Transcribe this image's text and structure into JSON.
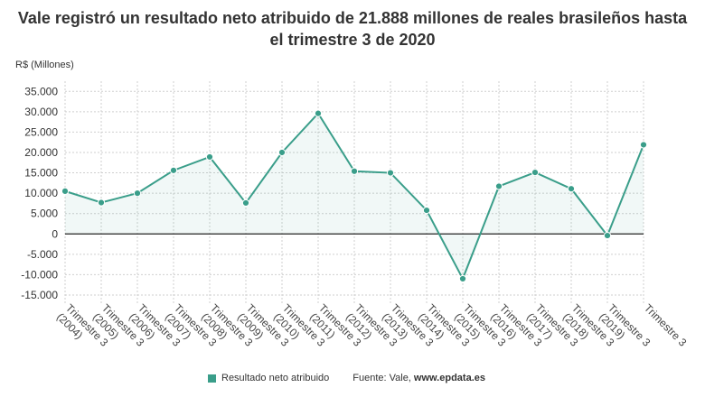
{
  "chart_data": {
    "type": "line",
    "title_line1": "Vale registró un resultado neto atribuido de 21.888 millones de reales brasileños hasta",
    "title_line2": "el trimestre 3 de 2020",
    "ylabel": "R$ (Millones)",
    "ylim": [
      -17000,
      37500
    ],
    "yticks": [
      -15000,
      -10000,
      -5000,
      0,
      5000,
      10000,
      15000,
      20000,
      25000,
      30000,
      35000
    ],
    "ytick_labels": [
      "-15.000",
      "-10.000",
      "-5.000",
      "0",
      "5.000",
      "10.000",
      "15.000",
      "20.000",
      "25.000",
      "30.000",
      "35.000"
    ],
    "categories": [
      "Trimestre 3 (2004)",
      "Trimestre 3 (2005)",
      "Trimestre 3 (2006)",
      "Trimestre 3 (2007)",
      "Trimestre 3 (2008)",
      "Trimestre 3 (2009)",
      "Trimestre 3 (2010)",
      "Trimestre 3 (2011)",
      "Trimestre 3 (2012)",
      "Trimestre 3 (2013)",
      "Trimestre 3 (2014)",
      "Trimestre 3 (2015)",
      "Trimestre 3 (2016)",
      "Trimestre 3 (2017)",
      "Trimestre 3 (2018)",
      "Trimestre 3 (2019)",
      "Trimestre 3"
    ],
    "series": [
      {
        "name": "Resultado neto atribuido",
        "color": "#3a9e8a",
        "values": [
          10500,
          7700,
          10000,
          15600,
          18900,
          7600,
          20000,
          29600,
          15400,
          15000,
          5800,
          -11000,
          11700,
          15100,
          11100,
          -400,
          21888
        ]
      }
    ],
    "grid": true,
    "legend_position": "bottom"
  },
  "legend": {
    "series_label": "Resultado neto atribuido",
    "source_prefix": "Fuente: Vale, ",
    "source_site": "www.epdata.es"
  }
}
